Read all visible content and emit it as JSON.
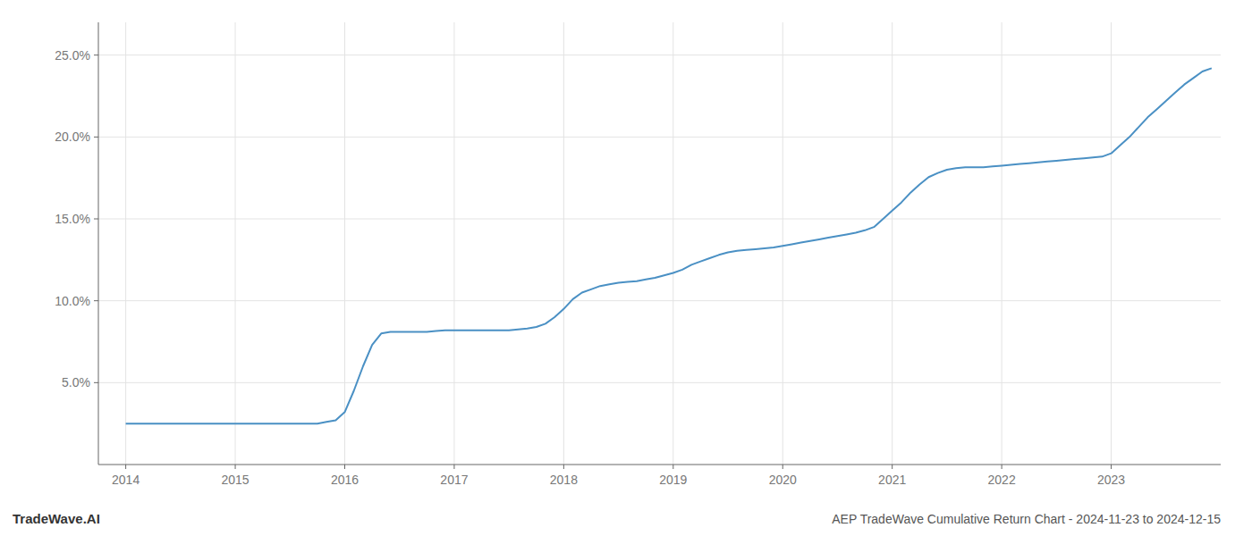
{
  "chart_data": {
    "type": "line",
    "title": "AEP TradeWave Cumulative Return Chart - 2024-11-23 to 2024-12-15",
    "annotations": [
      "TradeWave.AI"
    ],
    "x": [
      2014.0,
      2014.083,
      2014.167,
      2014.25,
      2014.333,
      2014.417,
      2014.5,
      2014.583,
      2014.667,
      2014.75,
      2014.833,
      2014.917,
      2015.0,
      2015.083,
      2015.167,
      2015.25,
      2015.333,
      2015.417,
      2015.5,
      2015.583,
      2015.667,
      2015.75,
      2015.833,
      2015.917,
      2016.0,
      2016.083,
      2016.167,
      2016.25,
      2016.333,
      2016.417,
      2016.5,
      2016.583,
      2016.667,
      2016.75,
      2016.833,
      2016.917,
      2017.0,
      2017.083,
      2017.167,
      2017.25,
      2017.333,
      2017.417,
      2017.5,
      2017.583,
      2017.667,
      2017.75,
      2017.833,
      2017.917,
      2018.0,
      2018.083,
      2018.167,
      2018.25,
      2018.333,
      2018.417,
      2018.5,
      2018.583,
      2018.667,
      2018.75,
      2018.833,
      2018.917,
      2019.0,
      2019.083,
      2019.167,
      2019.25,
      2019.333,
      2019.417,
      2019.5,
      2019.583,
      2019.667,
      2019.75,
      2019.833,
      2019.917,
      2020.0,
      2020.083,
      2020.167,
      2020.25,
      2020.333,
      2020.417,
      2020.5,
      2020.583,
      2020.667,
      2020.75,
      2020.833,
      2020.917,
      2021.0,
      2021.083,
      2021.167,
      2021.25,
      2021.333,
      2021.417,
      2021.5,
      2021.583,
      2021.667,
      2021.75,
      2021.833,
      2021.917,
      2022.0,
      2022.083,
      2022.167,
      2022.25,
      2022.333,
      2022.417,
      2022.5,
      2022.583,
      2022.667,
      2022.75,
      2022.833,
      2022.917,
      2023.0,
      2023.083,
      2023.167,
      2023.25,
      2023.333,
      2023.417,
      2023.5,
      2023.583,
      2023.667,
      2023.75,
      2023.833,
      2023.917
    ],
    "values": [
      2.5,
      2.5,
      2.5,
      2.5,
      2.5,
      2.5,
      2.5,
      2.5,
      2.5,
      2.5,
      2.5,
      2.5,
      2.5,
      2.5,
      2.5,
      2.5,
      2.5,
      2.5,
      2.5,
      2.5,
      2.5,
      2.5,
      2.6,
      2.7,
      3.2,
      4.5,
      6.0,
      7.3,
      8.0,
      8.1,
      8.1,
      8.1,
      8.1,
      8.1,
      8.15,
      8.2,
      8.2,
      8.2,
      8.2,
      8.2,
      8.2,
      8.2,
      8.2,
      8.25,
      8.3,
      8.4,
      8.6,
      9.0,
      9.5,
      10.1,
      10.5,
      10.7,
      10.9,
      11.0,
      11.1,
      11.15,
      11.2,
      11.3,
      11.4,
      11.55,
      11.7,
      11.9,
      12.2,
      12.4,
      12.6,
      12.8,
      12.95,
      13.05,
      13.1,
      13.15,
      13.2,
      13.25,
      13.35,
      13.45,
      13.55,
      13.65,
      13.75,
      13.85,
      13.95,
      14.05,
      14.15,
      14.3,
      14.5,
      15.0,
      15.5,
      16.0,
      16.6,
      17.1,
      17.55,
      17.8,
      18.0,
      18.1,
      18.15,
      18.15,
      18.15,
      18.2,
      18.25,
      18.3,
      18.35,
      18.4,
      18.45,
      18.5,
      18.55,
      18.6,
      18.65,
      18.7,
      18.75,
      18.8,
      19.0,
      19.5,
      20.0,
      20.6,
      21.2,
      21.7,
      22.2,
      22.7,
      23.2,
      23.6,
      24.0,
      24.2
    ],
    "color": "#4a90c4",
    "xlim": [
      2013.75,
      2024.0
    ],
    "ylim": [
      0,
      27
    ],
    "xticks": [
      2014,
      2015,
      2016,
      2017,
      2018,
      2019,
      2020,
      2021,
      2022,
      2023
    ],
    "yticks": [
      {
        "value": 5.0,
        "label": "5.0%"
      },
      {
        "value": 10.0,
        "label": "10.0%"
      },
      {
        "value": 15.0,
        "label": "15.0%"
      },
      {
        "value": 20.0,
        "label": "20.0%"
      },
      {
        "value": 25.0,
        "label": "25.0%"
      }
    ],
    "grid": true
  }
}
